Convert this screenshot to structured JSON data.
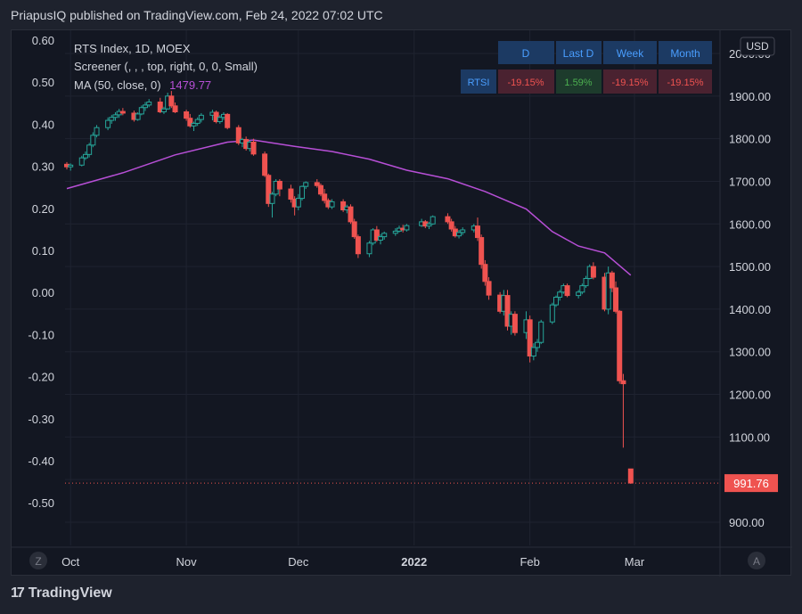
{
  "header": {
    "text": "PriapusIQ published on TradingView.com, Feb 24, 2022 07:02 UTC"
  },
  "legend": {
    "line1": "RTS Index, 1D, MOEX",
    "line2": "Screener (, , , top, right, 0, 0, Small)",
    "line3_label": "MA (50, close, 0)",
    "line3_value": "1479.77"
  },
  "screener": {
    "headers": [
      "D",
      "Last D",
      "Week",
      "Month"
    ],
    "row_label": "RTSI",
    "row_values": [
      "-19.15%",
      "1.59%",
      "-19.15%",
      "-19.15%"
    ]
  },
  "currency_label": "USD",
  "last_price_label": "991.76",
  "corner_left": "Z",
  "corner_right": "A",
  "footer": {
    "brand": "TradingView",
    "icon": "tradingview-logo-icon"
  },
  "colors": {
    "up": "#26a69a",
    "down": "#ef5350",
    "ma": "#b74fd6",
    "background": "#131722",
    "header_cell": "#1c3a63",
    "negative_cell": "#4a2230",
    "positive_cell": "#1d3b2c"
  },
  "chart_data": {
    "type": "candlestick",
    "title": "RTS Index, 1D, MOEX",
    "x_ticks": [
      {
        "label": "Oct",
        "date": "2021-10-01"
      },
      {
        "label": "Nov",
        "date": "2021-11-01"
      },
      {
        "label": "Dec",
        "date": "2021-12-01"
      },
      {
        "label": "2022",
        "date": "2022-01-01"
      },
      {
        "label": "Feb",
        "date": "2022-02-01"
      },
      {
        "label": "Mar",
        "date": "2022-03-01"
      }
    ],
    "y_right": {
      "label": "USD",
      "ticks": [
        "900.00",
        "1000.00",
        "1100.00",
        "1200.00",
        "1300.00",
        "1400.00",
        "1500.00",
        "1600.00",
        "1700.00",
        "1800.00",
        "1900.00",
        "2000.00"
      ],
      "range": [
        880,
        2030
      ]
    },
    "y_left": {
      "ticks": [
        "0.60",
        "0.50",
        "0.40",
        "0.30",
        "0.20",
        "0.10",
        "0.00",
        "-0.10",
        "-0.20",
        "-0.30",
        "-0.40",
        "-0.50"
      ]
    },
    "grid": true,
    "last_price": 991.76,
    "ma_50_last": 1479.77,
    "ohlc": [
      [
        "2021-09-30",
        1740,
        1745,
        1728,
        1734
      ],
      [
        "2021-10-01",
        1734,
        1742,
        1725,
        1738
      ],
      [
        "2021-10-04",
        1738,
        1760,
        1735,
        1755
      ],
      [
        "2021-10-05",
        1755,
        1770,
        1750,
        1763
      ],
      [
        "2021-10-06",
        1763,
        1790,
        1756,
        1785
      ],
      [
        "2021-10-07",
        1785,
        1815,
        1780,
        1808
      ],
      [
        "2021-10-08",
        1808,
        1832,
        1803,
        1826
      ],
      [
        "2021-10-11",
        1826,
        1850,
        1820,
        1843
      ],
      [
        "2021-10-12",
        1843,
        1856,
        1835,
        1850
      ],
      [
        "2021-10-13",
        1850,
        1862,
        1842,
        1856
      ],
      [
        "2021-10-14",
        1856,
        1870,
        1849,
        1864
      ],
      [
        "2021-10-15",
        1864,
        1872,
        1855,
        1860
      ],
      [
        "2021-10-18",
        1860,
        1866,
        1840,
        1845
      ],
      [
        "2021-10-19",
        1845,
        1862,
        1842,
        1858
      ],
      [
        "2021-10-20",
        1858,
        1878,
        1855,
        1873
      ],
      [
        "2021-10-21",
        1873,
        1886,
        1865,
        1879
      ],
      [
        "2021-10-22",
        1879,
        1893,
        1874,
        1886
      ],
      [
        "2021-10-25",
        1886,
        1896,
        1860,
        1863
      ],
      [
        "2021-10-26",
        1863,
        1875,
        1858,
        1870
      ],
      [
        "2021-10-27",
        1870,
        1908,
        1868,
        1900
      ],
      [
        "2021-10-28",
        1900,
        1912,
        1872,
        1877
      ],
      [
        "2021-10-29",
        1877,
        1885,
        1860,
        1863
      ],
      [
        "2021-11-01",
        1863,
        1868,
        1842,
        1848
      ],
      [
        "2021-11-02",
        1848,
        1858,
        1826,
        1830
      ],
      [
        "2021-11-03",
        1830,
        1840,
        1818,
        1836
      ],
      [
        "2021-11-04",
        1836,
        1850,
        1830,
        1845
      ],
      [
        "2021-11-05",
        1845,
        1860,
        1838,
        1855
      ],
      [
        "2021-11-08",
        1855,
        1868,
        1843,
        1862
      ],
      [
        "2021-11-09",
        1862,
        1866,
        1836,
        1840
      ],
      [
        "2021-11-10",
        1840,
        1855,
        1835,
        1850
      ],
      [
        "2021-11-11",
        1850,
        1862,
        1844,
        1857
      ],
      [
        "2021-11-12",
        1857,
        1860,
        1822,
        1826
      ],
      [
        "2021-11-15",
        1826,
        1832,
        1785,
        1790
      ],
      [
        "2021-11-16",
        1790,
        1802,
        1780,
        1798
      ],
      [
        "2021-11-17",
        1798,
        1805,
        1772,
        1777
      ],
      [
        "2021-11-18",
        1777,
        1796,
        1770,
        1792
      ],
      [
        "2021-11-19",
        1792,
        1800,
        1760,
        1764
      ],
      [
        "2021-11-22",
        1764,
        1770,
        1710,
        1714
      ],
      [
        "2021-11-23",
        1714,
        1718,
        1640,
        1648
      ],
      [
        "2021-11-24",
        1648,
        1675,
        1615,
        1670
      ],
      [
        "2021-11-25",
        1670,
        1705,
        1665,
        1700
      ],
      [
        "2021-11-26",
        1700,
        1705,
        1665,
        1682
      ],
      [
        "2021-11-29",
        1682,
        1692,
        1650,
        1658
      ],
      [
        "2021-11-30",
        1658,
        1665,
        1620,
        1640
      ],
      [
        "2021-12-01",
        1640,
        1670,
        1632,
        1660
      ],
      [
        "2021-12-02",
        1660,
        1690,
        1655,
        1688
      ],
      [
        "2021-12-03",
        1688,
        1700,
        1682,
        1697
      ],
      [
        "2021-12-06",
        1697,
        1705,
        1685,
        1690
      ],
      [
        "2021-12-07",
        1690,
        1695,
        1665,
        1670
      ],
      [
        "2021-12-08",
        1670,
        1682,
        1648,
        1655
      ],
      [
        "2021-12-09",
        1655,
        1660,
        1635,
        1640
      ],
      [
        "2021-12-10",
        1640,
        1658,
        1635,
        1652
      ],
      [
        "2021-12-13",
        1652,
        1658,
        1628,
        1633
      ],
      [
        "2021-12-14",
        1633,
        1645,
        1625,
        1640
      ],
      [
        "2021-12-15",
        1640,
        1646,
        1600,
        1605
      ],
      [
        "2021-12-16",
        1605,
        1612,
        1565,
        1570
      ],
      [
        "2021-12-17",
        1570,
        1575,
        1520,
        1530
      ],
      [
        "2021-12-20",
        1530,
        1560,
        1522,
        1555
      ],
      [
        "2021-12-21",
        1555,
        1590,
        1550,
        1586
      ],
      [
        "2021-12-22",
        1586,
        1595,
        1558,
        1562
      ],
      [
        "2021-12-23",
        1562,
        1576,
        1552,
        1570
      ],
      [
        "2021-12-24",
        1570,
        1582,
        1563,
        1578
      ],
      [
        "2021-12-27",
        1578,
        1590,
        1572,
        1583
      ],
      [
        "2021-12-28",
        1583,
        1596,
        1580,
        1590
      ],
      [
        "2021-12-29",
        1590,
        1598,
        1580,
        1586
      ],
      [
        "2021-12-30",
        1586,
        1600,
        1582,
        1596
      ],
      [
        "2022-01-03",
        1596,
        1612,
        1593,
        1605
      ],
      [
        "2022-01-04",
        1605,
        1609,
        1590,
        1595
      ],
      [
        "2022-01-05",
        1595,
        1605,
        1588,
        1600
      ],
      [
        "2022-01-06",
        1600,
        1620,
        1598,
        1617
      ],
      [
        "2022-01-10",
        1617,
        1625,
        1600,
        1605
      ],
      [
        "2022-01-11",
        1605,
        1612,
        1582,
        1588
      ],
      [
        "2022-01-12",
        1588,
        1595,
        1568,
        1572
      ],
      [
        "2022-01-13",
        1572,
        1586,
        1566,
        1580
      ],
      [
        "2022-01-14",
        1580,
        1592,
        1574,
        1586
      ],
      [
        "2022-01-17",
        1586,
        1600,
        1580,
        1595
      ],
      [
        "2022-01-18",
        1595,
        1615,
        1560,
        1568
      ],
      [
        "2022-01-19",
        1568,
        1575,
        1495,
        1505
      ],
      [
        "2022-01-20",
        1505,
        1515,
        1455,
        1465
      ],
      [
        "2022-01-21",
        1465,
        1475,
        1422,
        1433
      ],
      [
        "2022-01-24",
        1433,
        1440,
        1390,
        1395
      ],
      [
        "2022-01-25",
        1395,
        1445,
        1385,
        1432
      ],
      [
        "2022-01-26",
        1432,
        1445,
        1350,
        1360
      ],
      [
        "2022-01-27",
        1360,
        1395,
        1340,
        1388
      ],
      [
        "2022-01-28",
        1388,
        1395,
        1338,
        1345
      ],
      [
        "2022-01-31",
        1345,
        1395,
        1330,
        1375
      ],
      [
        "2022-02-01",
        1375,
        1385,
        1275,
        1290
      ],
      [
        "2022-02-02",
        1290,
        1320,
        1280,
        1310
      ],
      [
        "2022-02-03",
        1310,
        1330,
        1300,
        1322
      ],
      [
        "2022-02-04",
        1322,
        1375,
        1318,
        1370
      ],
      [
        "2022-02-07",
        1370,
        1415,
        1365,
        1410
      ],
      [
        "2022-02-08",
        1410,
        1432,
        1405,
        1428
      ],
      [
        "2022-02-09",
        1428,
        1445,
        1420,
        1440
      ],
      [
        "2022-02-10",
        1440,
        1460,
        1436,
        1455
      ],
      [
        "2022-02-11",
        1455,
        1460,
        1428,
        1432
      ],
      [
        "2022-02-14",
        1432,
        1445,
        1425,
        1440
      ],
      [
        "2022-02-15",
        1440,
        1460,
        1435,
        1455
      ],
      [
        "2022-02-16",
        1455,
        1478,
        1450,
        1472
      ],
      [
        "2022-02-17",
        1472,
        1505,
        1470,
        1500
      ],
      [
        "2022-02-18",
        1500,
        1510,
        1470,
        1475
      ],
      [
        "2022-02-21",
        1475,
        1485,
        1395,
        1400
      ],
      [
        "2022-02-22",
        1400,
        1500,
        1388,
        1485
      ],
      [
        "2022-02-23",
        1485,
        1490,
        1440,
        1450
      ],
      [
        "2022-02-24",
        1450,
        1465,
        1390,
        1395
      ],
      [
        "2022-02-25",
        1395,
        1398,
        1225,
        1232
      ],
      [
        "2022-02-26",
        1232,
        1248,
        1075,
        1225
      ],
      [
        "2022-02-28",
        1025,
        1025,
        990,
        992
      ]
    ],
    "ma_50": [
      [
        "2021-09-30",
        1683
      ],
      [
        "2021-10-15",
        1720
      ],
      [
        "2021-10-29",
        1762
      ],
      [
        "2021-11-12",
        1792
      ],
      [
        "2021-11-19",
        1797
      ],
      [
        "2021-11-30",
        1782
      ],
      [
        "2021-12-10",
        1770
      ],
      [
        "2021-12-20",
        1752
      ],
      [
        "2021-12-30",
        1726
      ],
      [
        "2022-01-10",
        1706
      ],
      [
        "2022-01-20",
        1676
      ],
      [
        "2022-01-31",
        1635
      ],
      [
        "2022-02-07",
        1582
      ],
      [
        "2022-02-14",
        1548
      ],
      [
        "2022-02-21",
        1532
      ],
      [
        "2022-02-28",
        1479.77
      ]
    ]
  }
}
